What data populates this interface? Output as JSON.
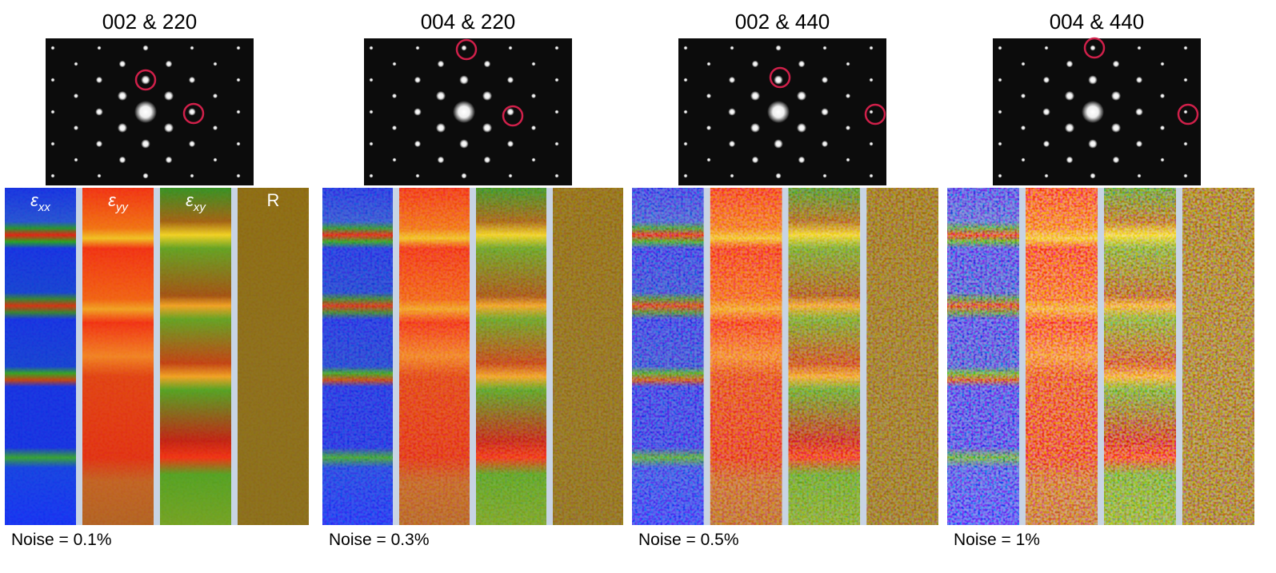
{
  "panels": [
    {
      "title": "002 & 220",
      "noise": "Noise = 0.1%"
    },
    {
      "title": "004 & 220",
      "noise": "Noise = 0.3%"
    },
    {
      "title": "002 & 440",
      "noise": "Noise = 0.5%"
    },
    {
      "title": "004 & 440",
      "noise": "Noise = 1%"
    }
  ],
  "map_labels": [
    {
      "symbol": "ε",
      "sub": "xx"
    },
    {
      "symbol": "ε",
      "sub": "yy"
    },
    {
      "symbol": "ε",
      "sub": "xy"
    },
    {
      "symbol": "R"
    }
  ]
}
